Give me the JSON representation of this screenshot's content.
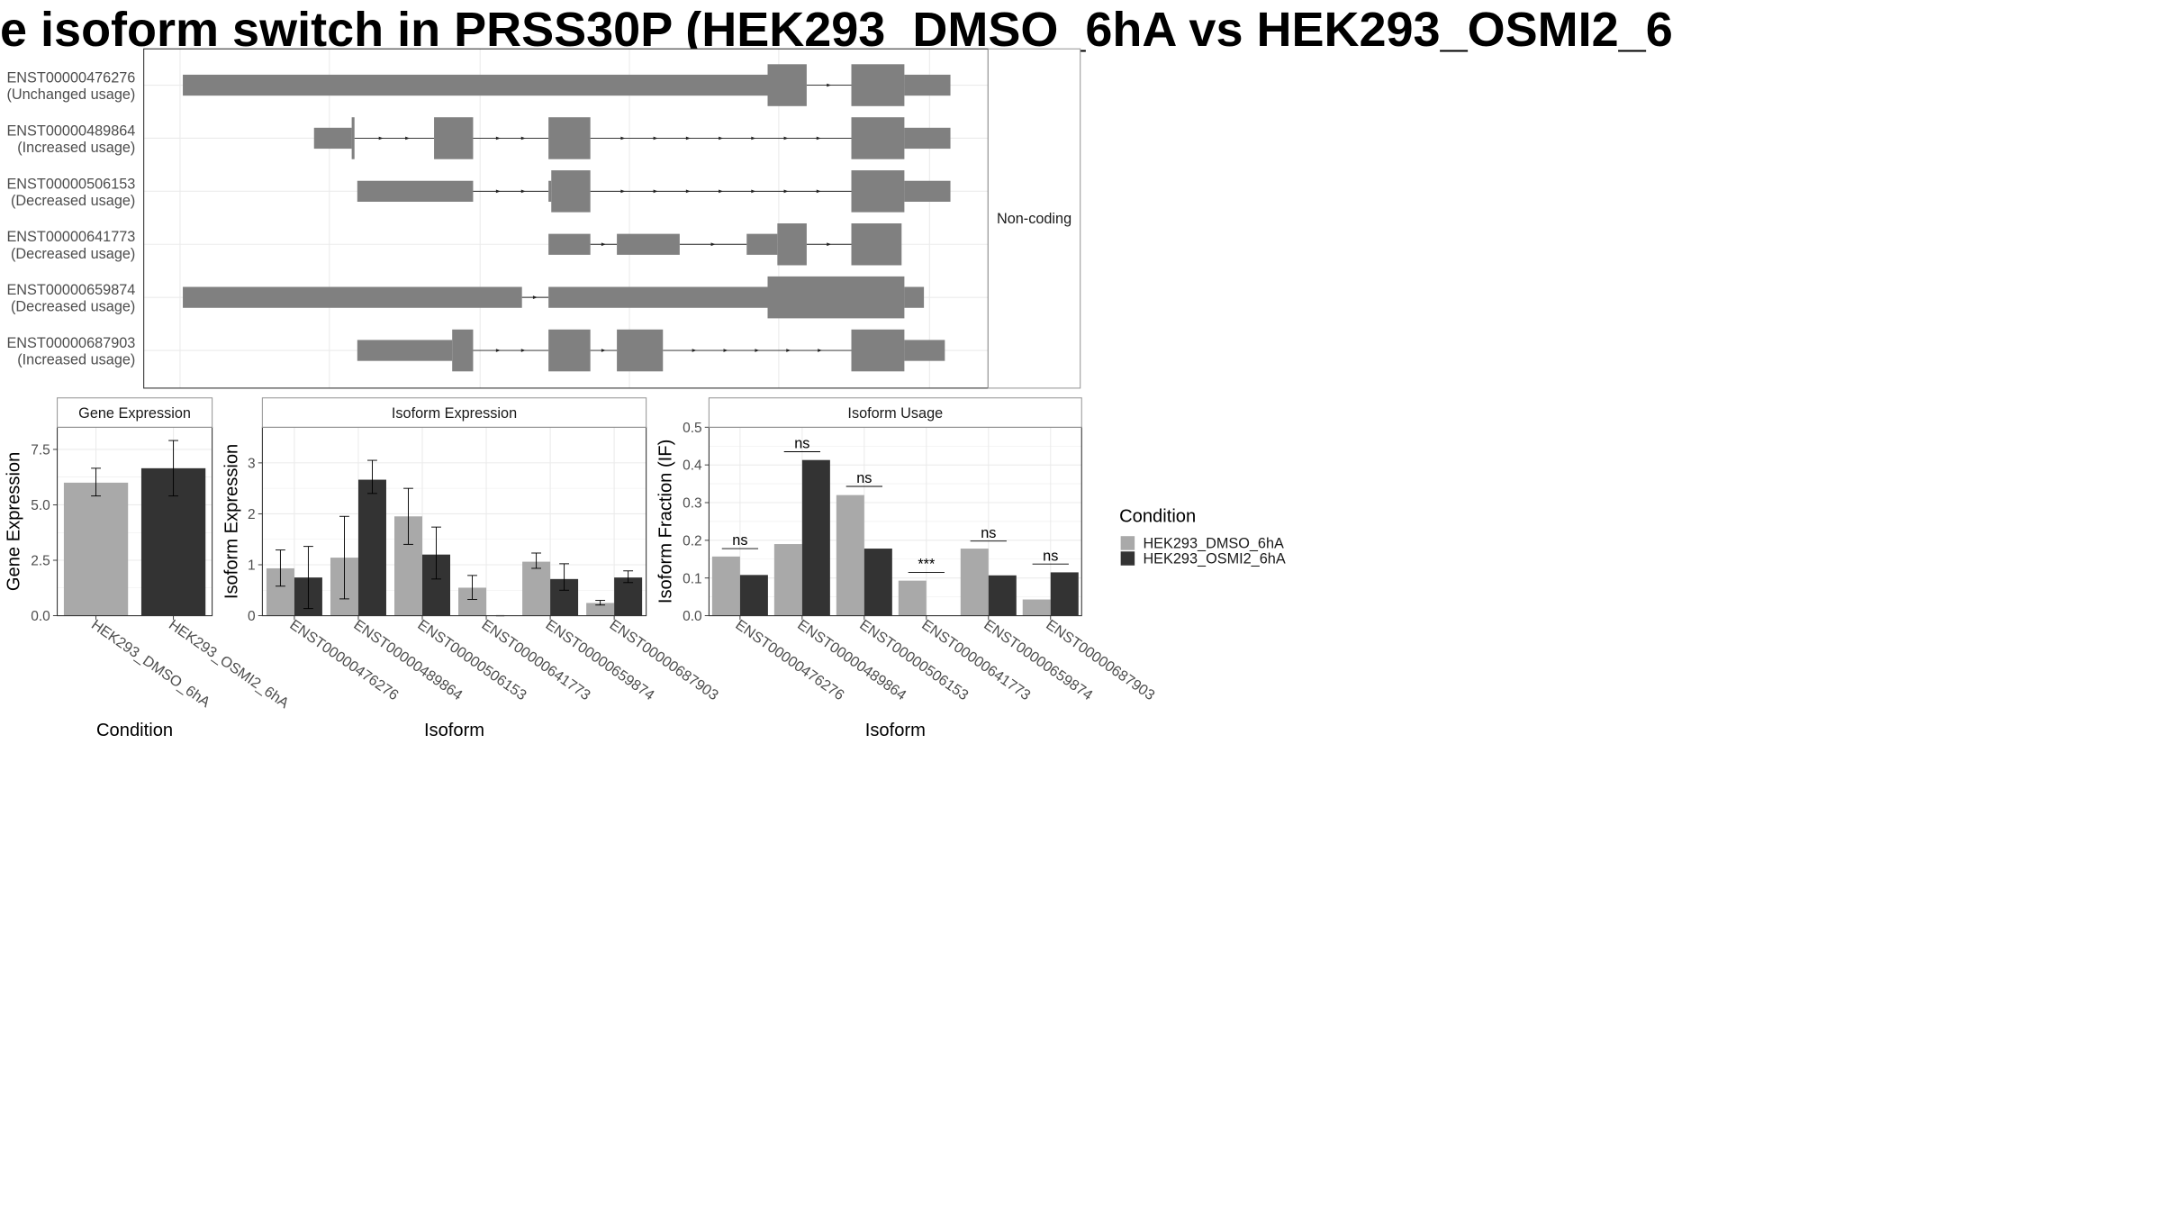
{
  "title": "e isoform switch in PRSS30P (HEK293_DMSO_6hA vs HEK293_OSMI2_6",
  "colors": {
    "dmso": "#a9a9a9",
    "osmi2": "#333333",
    "transcript": "#808080",
    "grid": "#ebebeb",
    "panel_border": "#333333",
    "strip_border": "#9a9a9a"
  },
  "chart_data": [
    {
      "type": "gene-structure",
      "coding_label": "Non-coding",
      "transcripts": [
        {
          "id": "ENST00000476276",
          "usage": "(Unchanged usage)"
        },
        {
          "id": "ENST00000489864",
          "usage": "(Increased usage)"
        },
        {
          "id": "ENST00000506153",
          "usage": "(Decreased usage)"
        },
        {
          "id": "ENST00000641773",
          "usage": "(Decreased usage)"
        },
        {
          "id": "ENST00000659874",
          "usage": "(Decreased usage)"
        },
        {
          "id": "ENST00000687903",
          "usage": "(Increased usage)"
        }
      ]
    },
    {
      "type": "bar",
      "title": "Gene Expression",
      "xlabel": "Condition",
      "ylabel": "Gene Expression",
      "ylim": [
        0,
        8.5
      ],
      "yticks": [
        "0.0",
        "2.5",
        "5.0",
        "7.5"
      ],
      "categories": [
        "HEK293_DMSO_6hA",
        "HEK293_OSMI2_6hA"
      ],
      "values": [
        6.0,
        6.65
      ],
      "err_low": [
        5.4,
        5.4
      ],
      "err_high": [
        6.65,
        7.9
      ]
    },
    {
      "type": "bar",
      "title": "Isoform Expression",
      "xlabel": "Isoform",
      "ylabel": "Isoform Expression",
      "ylim": [
        0,
        3.7
      ],
      "yticks": [
        "0",
        "1",
        "2",
        "3"
      ],
      "categories": [
        "ENST00000476276",
        "ENST00000489864",
        "ENST00000506153",
        "ENST00000641773",
        "ENST00000659874",
        "ENST00000687903"
      ],
      "series": [
        {
          "name": "HEK293_DMSO_6hA",
          "values": [
            0.93,
            1.14,
            1.95,
            0.55,
            1.06,
            0.25
          ],
          "err_low": [
            0.58,
            0.33,
            1.4,
            0.32,
            0.93,
            0.21
          ],
          "err_high": [
            1.29,
            1.95,
            2.5,
            0.79,
            1.23,
            0.3
          ]
        },
        {
          "name": "HEK293_OSMI2_6hA",
          "values": [
            0.75,
            2.67,
            1.2,
            0.0,
            0.72,
            0.75
          ],
          "err_low": [
            0.14,
            2.4,
            0.72,
            0.0,
            0.5,
            0.65
          ],
          "err_high": [
            1.36,
            3.05,
            1.74,
            0.0,
            1.02,
            0.88
          ]
        }
      ]
    },
    {
      "type": "bar",
      "title": "Isoform Usage",
      "xlabel": "Isoform",
      "ylabel": "Isoform Fraction (IF)",
      "ylim": [
        0,
        0.5
      ],
      "yticks": [
        "0.0",
        "0.1",
        "0.2",
        "0.3",
        "0.4",
        "0.5"
      ],
      "categories": [
        "ENST00000476276",
        "ENST00000489864",
        "ENST00000506153",
        "ENST00000641773",
        "ENST00000659874",
        "ENST00000687903"
      ],
      "series": [
        {
          "name": "HEK293_DMSO_6hA",
          "values": [
            0.157,
            0.19,
            0.32,
            0.093,
            0.178,
            0.043
          ]
        },
        {
          "name": "HEK293_OSMI2_6hA",
          "values": [
            0.108,
            0.413,
            0.178,
            0.0,
            0.107,
            0.115
          ]
        }
      ],
      "significance": [
        "ns",
        "ns",
        "ns",
        "***",
        "ns",
        "ns"
      ],
      "significance_y": [
        0.178,
        0.435,
        0.343,
        0.115,
        0.198,
        0.137
      ]
    }
  ],
  "legend": {
    "title": "Condition",
    "items": [
      "HEK293_DMSO_6hA",
      "HEK293_OSMI2_6hA"
    ]
  }
}
